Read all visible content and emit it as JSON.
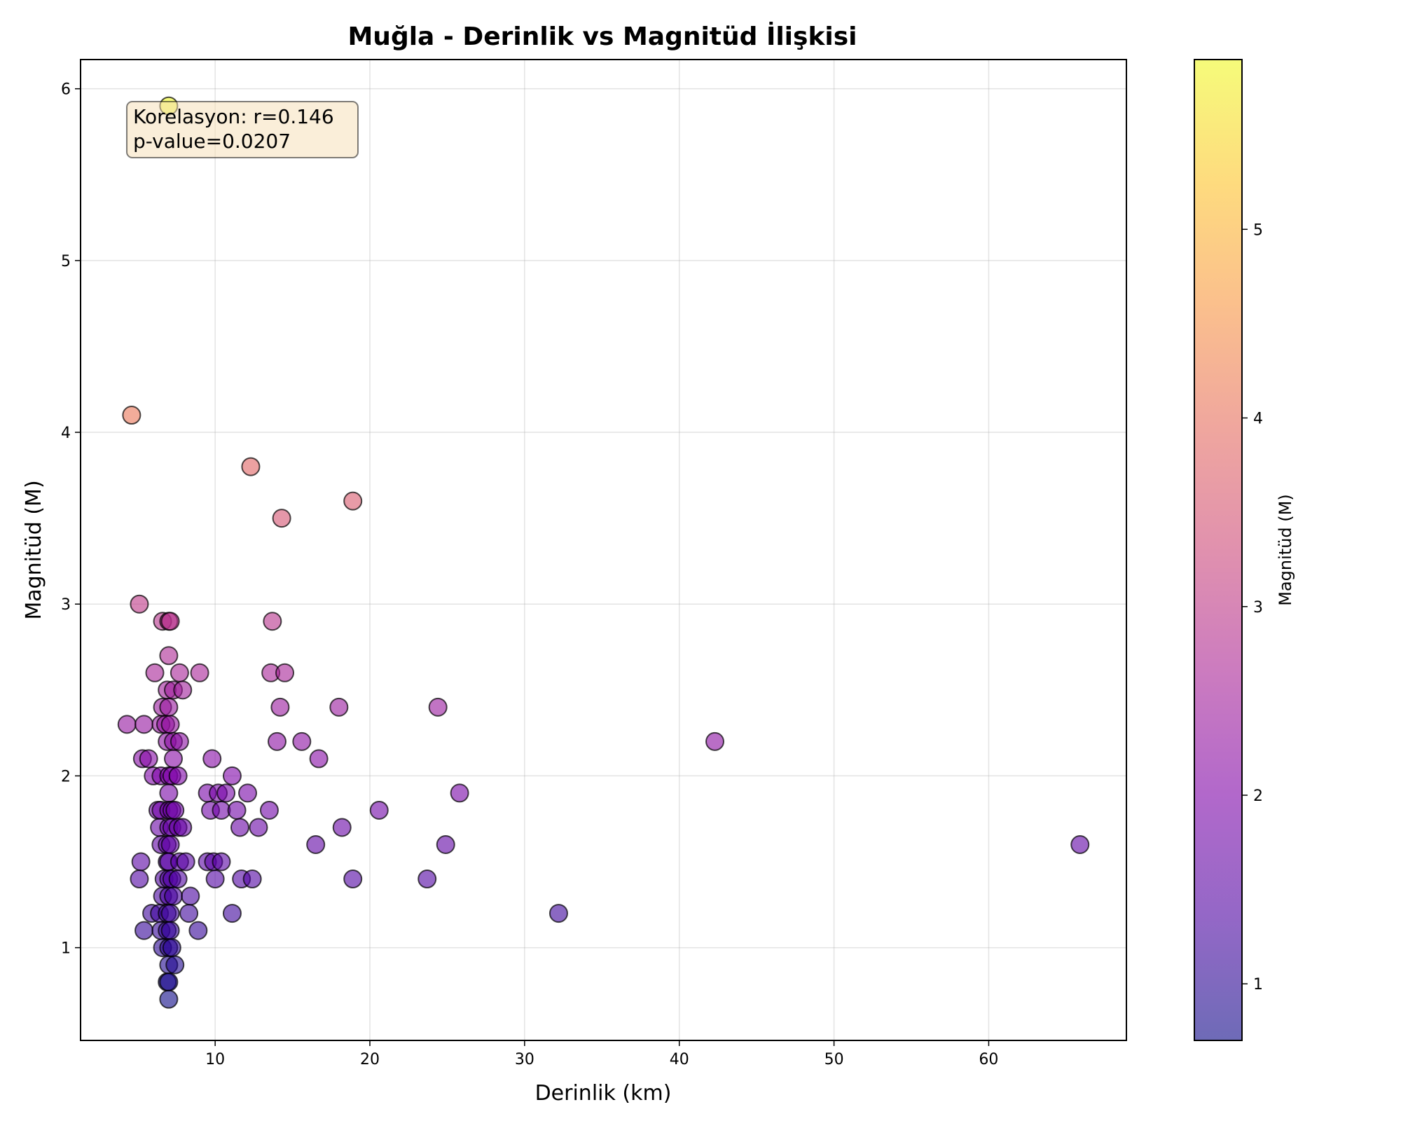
{
  "chart_data": {
    "type": "scatter",
    "title": "Muğla - Derinlik vs Magnitüd İlişkisi",
    "xlabel": "Derinlik (km)",
    "ylabel": "Magnitüd (M)",
    "xlim": [
      1.3,
      68.9
    ],
    "ylim": [
      0.46,
      6.17
    ],
    "xticks": [
      10,
      20,
      30,
      40,
      50,
      60
    ],
    "yticks": [
      1,
      2,
      3,
      4,
      5,
      6
    ],
    "grid": true,
    "colorbar": {
      "label": "Magnitüd (M)",
      "colormap": "plasma",
      "range": [
        0.7,
        5.9
      ],
      "ticks": [
        1,
        2,
        3,
        4,
        5
      ]
    },
    "annotation": {
      "line1": "Korelasyon: r=0.146",
      "line2": "p-value=0.0207",
      "placement": "top-left"
    },
    "colors": {
      "annotation_bg": "#f5deb3",
      "marker_edge": "#000000",
      "grid": "#b0b0b0"
    },
    "points": [
      {
        "x": 7.0,
        "y": 5.9
      },
      {
        "x": 4.6,
        "y": 4.1
      },
      {
        "x": 12.3,
        "y": 3.8
      },
      {
        "x": 18.9,
        "y": 3.6
      },
      {
        "x": 14.3,
        "y": 3.5
      },
      {
        "x": 5.1,
        "y": 3.0
      },
      {
        "x": 6.6,
        "y": 2.9
      },
      {
        "x": 7.0,
        "y": 2.9
      },
      {
        "x": 7.1,
        "y": 2.9
      },
      {
        "x": 13.7,
        "y": 2.9
      },
      {
        "x": 7.0,
        "y": 2.7
      },
      {
        "x": 6.1,
        "y": 2.6
      },
      {
        "x": 7.7,
        "y": 2.6
      },
      {
        "x": 9.0,
        "y": 2.6
      },
      {
        "x": 13.6,
        "y": 2.6
      },
      {
        "x": 14.5,
        "y": 2.6
      },
      {
        "x": 6.9,
        "y": 2.5
      },
      {
        "x": 7.3,
        "y": 2.5
      },
      {
        "x": 7.9,
        "y": 2.5
      },
      {
        "x": 6.6,
        "y": 2.4
      },
      {
        "x": 7.0,
        "y": 2.4
      },
      {
        "x": 14.2,
        "y": 2.4
      },
      {
        "x": 18.0,
        "y": 2.4
      },
      {
        "x": 24.4,
        "y": 2.4
      },
      {
        "x": 4.3,
        "y": 2.3
      },
      {
        "x": 5.4,
        "y": 2.3
      },
      {
        "x": 6.5,
        "y": 2.3
      },
      {
        "x": 6.8,
        "y": 2.3
      },
      {
        "x": 7.1,
        "y": 2.3
      },
      {
        "x": 6.9,
        "y": 2.2
      },
      {
        "x": 7.3,
        "y": 2.2
      },
      {
        "x": 7.7,
        "y": 2.2
      },
      {
        "x": 14.0,
        "y": 2.2
      },
      {
        "x": 15.6,
        "y": 2.2
      },
      {
        "x": 42.3,
        "y": 2.2
      },
      {
        "x": 5.3,
        "y": 2.1
      },
      {
        "x": 5.7,
        "y": 2.1
      },
      {
        "x": 7.3,
        "y": 2.1
      },
      {
        "x": 9.8,
        "y": 2.1
      },
      {
        "x": 16.7,
        "y": 2.1
      },
      {
        "x": 6.0,
        "y": 2.0
      },
      {
        "x": 6.5,
        "y": 2.0
      },
      {
        "x": 7.0,
        "y": 2.0
      },
      {
        "x": 7.2,
        "y": 2.0
      },
      {
        "x": 7.6,
        "y": 2.0
      },
      {
        "x": 11.1,
        "y": 2.0
      },
      {
        "x": 7.0,
        "y": 1.9
      },
      {
        "x": 9.5,
        "y": 1.9
      },
      {
        "x": 10.2,
        "y": 1.9
      },
      {
        "x": 10.7,
        "y": 1.9
      },
      {
        "x": 12.1,
        "y": 1.9
      },
      {
        "x": 25.8,
        "y": 1.9
      },
      {
        "x": 6.3,
        "y": 1.8
      },
      {
        "x": 6.5,
        "y": 1.8
      },
      {
        "x": 7.0,
        "y": 1.8
      },
      {
        "x": 7.2,
        "y": 1.8
      },
      {
        "x": 7.4,
        "y": 1.8
      },
      {
        "x": 9.7,
        "y": 1.8
      },
      {
        "x": 10.4,
        "y": 1.8
      },
      {
        "x": 11.4,
        "y": 1.8
      },
      {
        "x": 13.5,
        "y": 1.8
      },
      {
        "x": 20.6,
        "y": 1.8
      },
      {
        "x": 6.4,
        "y": 1.7
      },
      {
        "x": 7.0,
        "y": 1.7
      },
      {
        "x": 7.2,
        "y": 1.7
      },
      {
        "x": 7.6,
        "y": 1.7
      },
      {
        "x": 7.9,
        "y": 1.7
      },
      {
        "x": 11.6,
        "y": 1.7
      },
      {
        "x": 12.8,
        "y": 1.7
      },
      {
        "x": 18.2,
        "y": 1.7
      },
      {
        "x": 6.5,
        "y": 1.6
      },
      {
        "x": 6.9,
        "y": 1.6
      },
      {
        "x": 7.1,
        "y": 1.6
      },
      {
        "x": 16.5,
        "y": 1.6
      },
      {
        "x": 24.9,
        "y": 1.6
      },
      {
        "x": 65.9,
        "y": 1.6
      },
      {
        "x": 5.2,
        "y": 1.5
      },
      {
        "x": 6.9,
        "y": 1.5
      },
      {
        "x": 7.0,
        "y": 1.5
      },
      {
        "x": 7.7,
        "y": 1.5
      },
      {
        "x": 8.1,
        "y": 1.5
      },
      {
        "x": 9.5,
        "y": 1.5
      },
      {
        "x": 9.9,
        "y": 1.5
      },
      {
        "x": 10.4,
        "y": 1.5
      },
      {
        "x": 5.1,
        "y": 1.4
      },
      {
        "x": 6.7,
        "y": 1.4
      },
      {
        "x": 7.0,
        "y": 1.4
      },
      {
        "x": 7.2,
        "y": 1.4
      },
      {
        "x": 7.6,
        "y": 1.4
      },
      {
        "x": 10.0,
        "y": 1.4
      },
      {
        "x": 11.7,
        "y": 1.4
      },
      {
        "x": 12.4,
        "y": 1.4
      },
      {
        "x": 18.9,
        "y": 1.4
      },
      {
        "x": 23.7,
        "y": 1.4
      },
      {
        "x": 6.6,
        "y": 1.3
      },
      {
        "x": 7.0,
        "y": 1.3
      },
      {
        "x": 7.3,
        "y": 1.3
      },
      {
        "x": 8.4,
        "y": 1.3
      },
      {
        "x": 5.9,
        "y": 1.2
      },
      {
        "x": 6.4,
        "y": 1.2
      },
      {
        "x": 6.9,
        "y": 1.2
      },
      {
        "x": 7.1,
        "y": 1.2
      },
      {
        "x": 8.3,
        "y": 1.2
      },
      {
        "x": 11.1,
        "y": 1.2
      },
      {
        "x": 32.2,
        "y": 1.2
      },
      {
        "x": 5.4,
        "y": 1.1
      },
      {
        "x": 6.5,
        "y": 1.1
      },
      {
        "x": 6.9,
        "y": 1.1
      },
      {
        "x": 7.1,
        "y": 1.1
      },
      {
        "x": 8.9,
        "y": 1.1
      },
      {
        "x": 6.6,
        "y": 1.0
      },
      {
        "x": 7.0,
        "y": 1.0
      },
      {
        "x": 7.2,
        "y": 1.0
      },
      {
        "x": 7.0,
        "y": 0.9
      },
      {
        "x": 7.4,
        "y": 0.9
      },
      {
        "x": 6.9,
        "y": 0.8
      },
      {
        "x": 7.0,
        "y": 0.8
      },
      {
        "x": 7.0,
        "y": 0.7
      }
    ]
  }
}
